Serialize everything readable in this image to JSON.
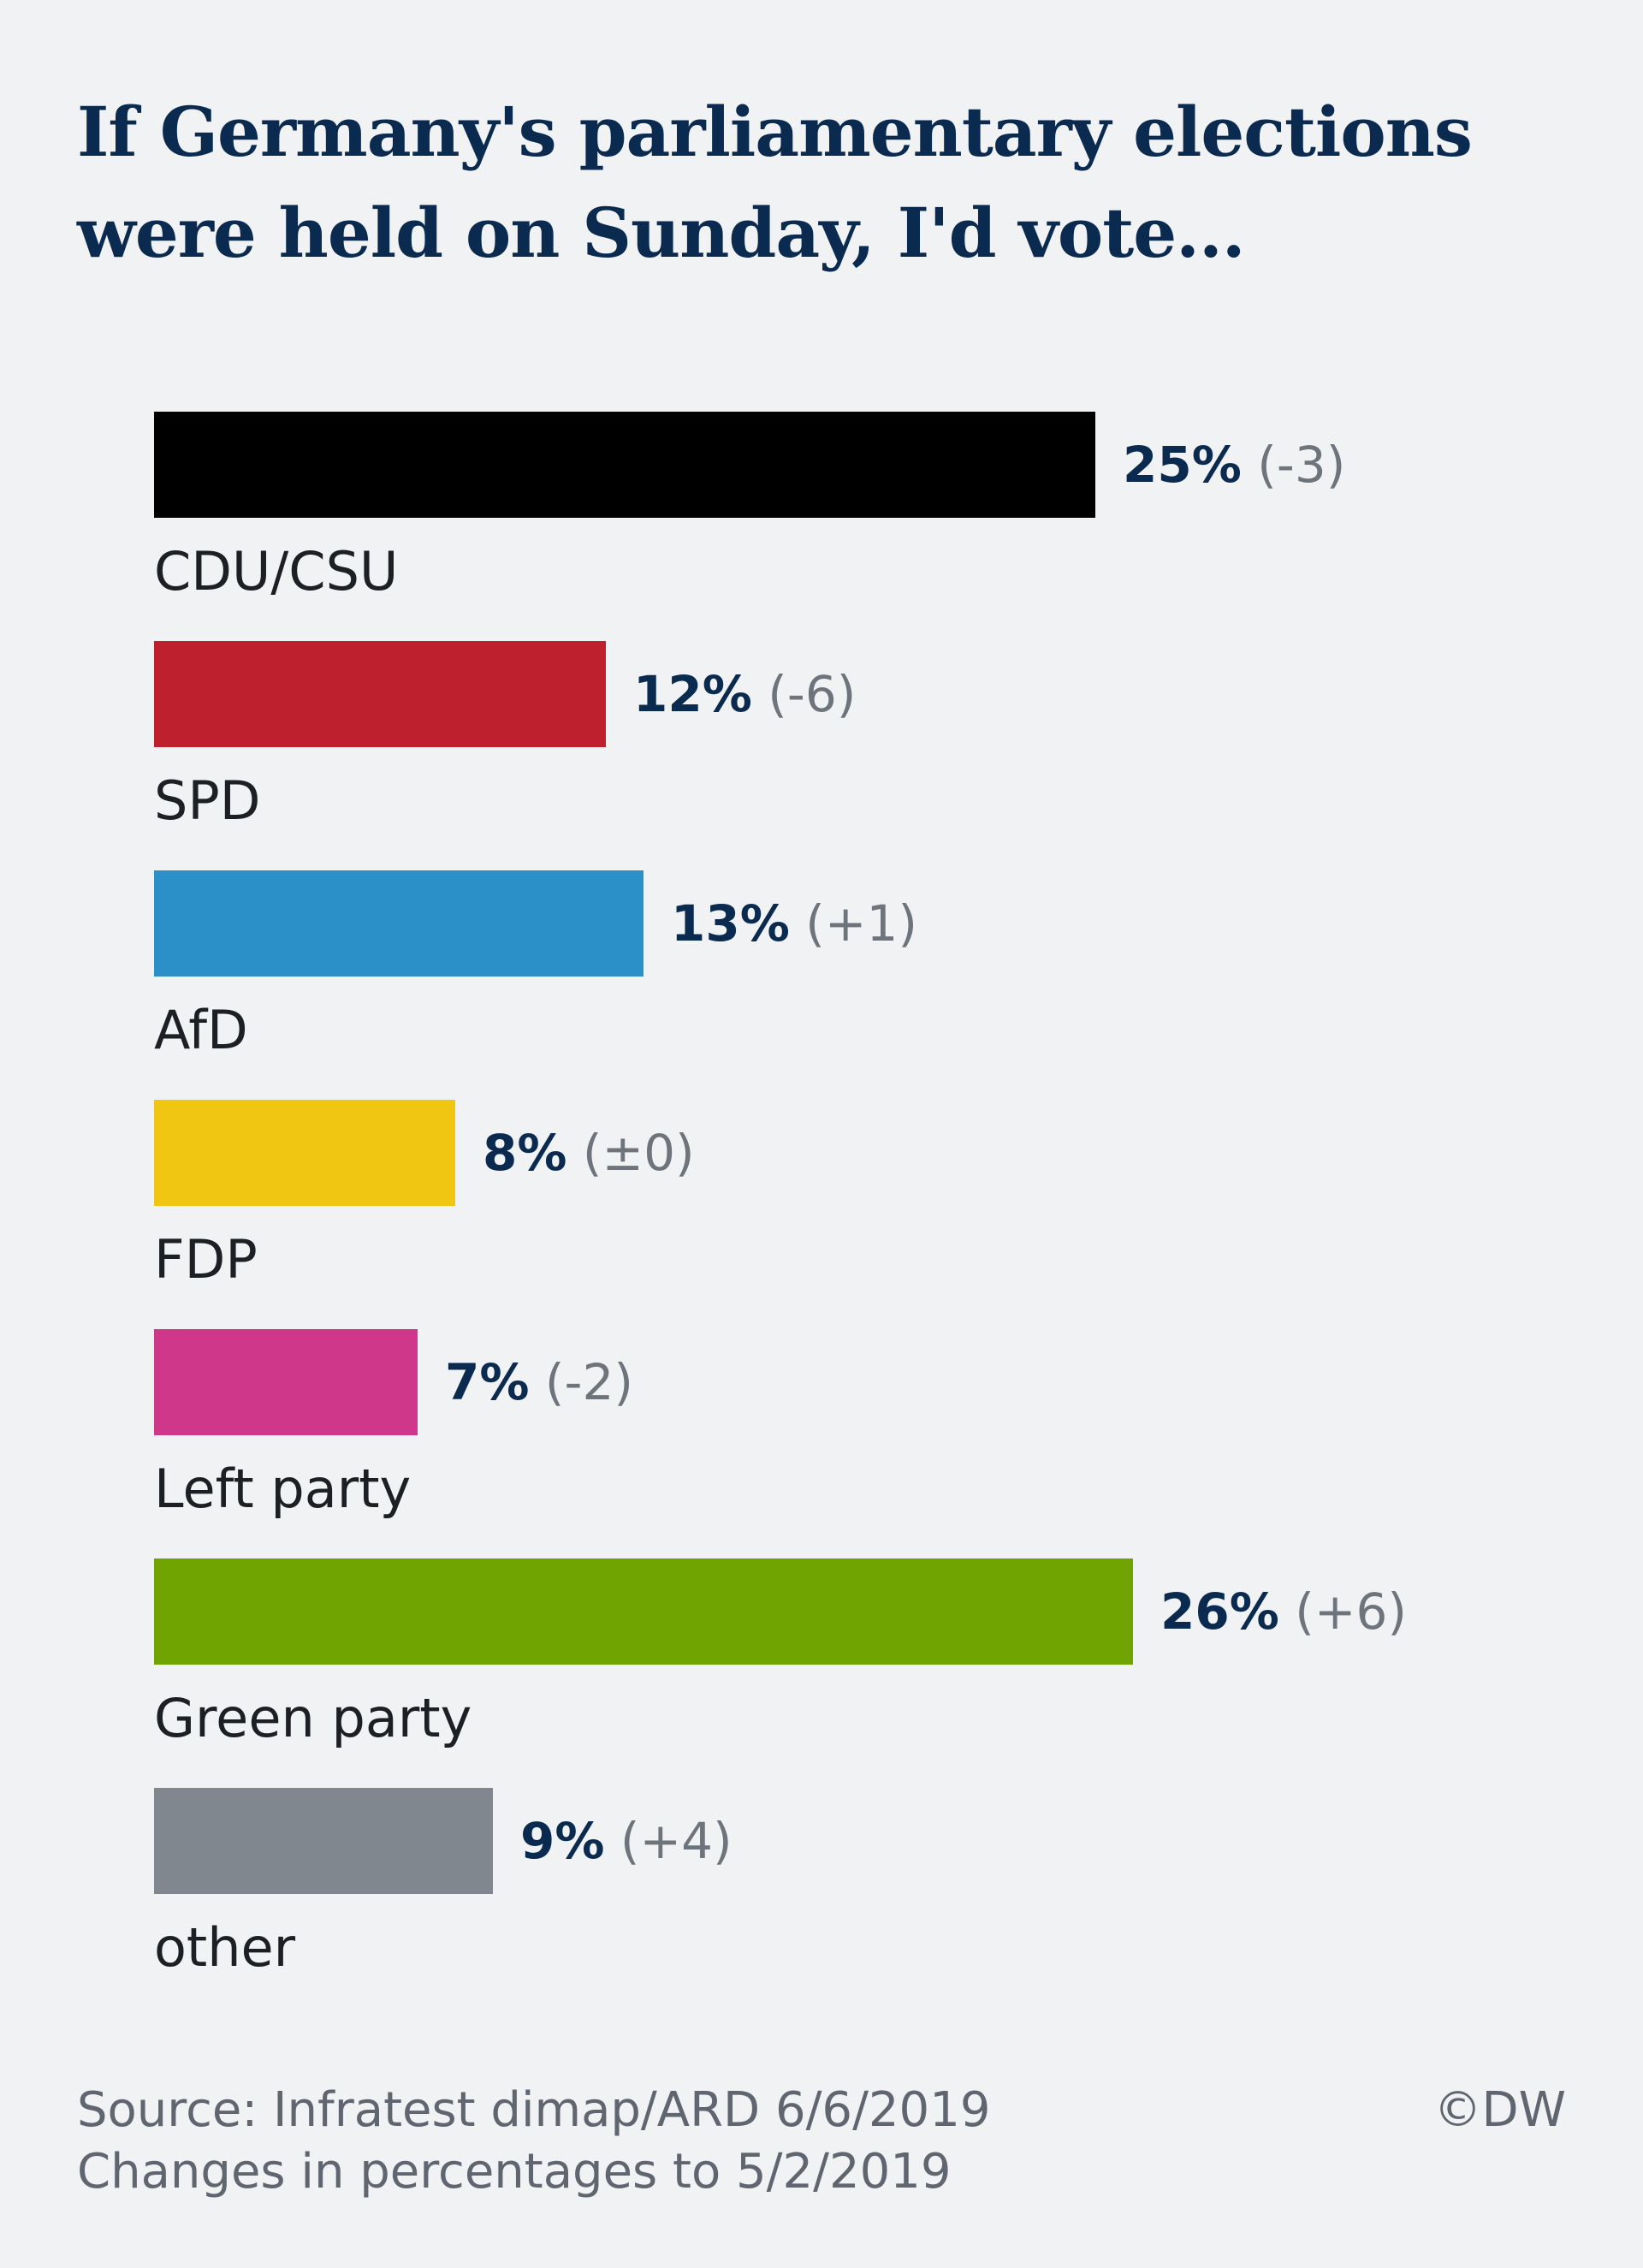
{
  "title": "If Germany's parliamentary elections were held on Sunday, I'd vote...",
  "footer": {
    "source": "Source: Infratest dimap/ARD 6/6/2019",
    "changes_note": "Changes in percentages to 5/2/2019",
    "copyright": "©DW"
  },
  "chart_data": {
    "type": "bar",
    "orientation": "horizontal",
    "title": "If Germany's parliamentary elections were held on Sunday, I'd vote...",
    "xlabel": "",
    "ylabel": "",
    "grid": false,
    "categories": [
      "CDU/CSU",
      "SPD",
      "AfD",
      "FDP",
      "Left party",
      "Green party",
      "other"
    ],
    "values": [
      25,
      12,
      13,
      8,
      7,
      26,
      9
    ],
    "value_labels": [
      "25%",
      "12%",
      "13%",
      "8%",
      "7%",
      "26%",
      "9%"
    ],
    "change_labels": [
      "(-3)",
      "(-6)",
      "(+1)",
      "(±0)",
      "(-2)",
      "(+6)",
      "(+4)"
    ],
    "colors": [
      "#000000",
      "#be202e",
      "#2b90c8",
      "#f0c613",
      "#cf378b",
      "#70a501",
      "#80878f"
    ],
    "label_color": "#0a2a4f",
    "change_color": "#6e747c",
    "category_color": "#1c1f24"
  }
}
